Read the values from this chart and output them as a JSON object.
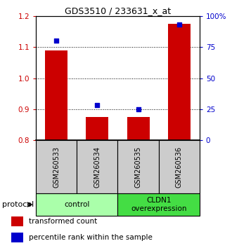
{
  "title": "GDS3510 / 233631_x_at",
  "samples": [
    "GSM260533",
    "GSM260534",
    "GSM260535",
    "GSM260536"
  ],
  "bar_values": [
    1.09,
    0.875,
    0.875,
    1.175
  ],
  "percentile_values": [
    80,
    28,
    25,
    93
  ],
  "ylim_left": [
    0.8,
    1.2
  ],
  "ylim_right": [
    0,
    100
  ],
  "yticks_left": [
    0.8,
    0.9,
    1.0,
    1.1,
    1.2
  ],
  "yticks_right": [
    0,
    25,
    50,
    75,
    100
  ],
  "ytick_labels_right": [
    "0",
    "25",
    "50",
    "75",
    "100%"
  ],
  "bar_color": "#cc0000",
  "dot_color": "#0000cc",
  "bar_bottom": 0.8,
  "groups": [
    {
      "label": "control",
      "color": "#aaffaa"
    },
    {
      "label": "CLDN1\noverexpression",
      "color": "#44dd44"
    }
  ],
  "legend_items": [
    {
      "color": "#cc0000",
      "label": "transformed count"
    },
    {
      "color": "#0000cc",
      "label": "percentile rank within the sample"
    }
  ],
  "protocol_label": "protocol",
  "dotted_grid_values": [
    0.9,
    1.0,
    1.1
  ],
  "sample_box_color": "#cccccc",
  "tick_label_color_left": "#cc0000",
  "tick_label_color_right": "#0000cc"
}
